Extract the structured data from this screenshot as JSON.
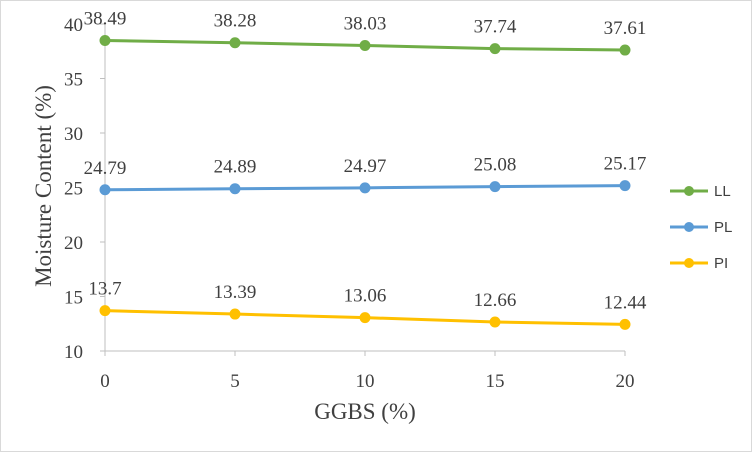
{
  "chart_data": {
    "type": "line",
    "title": "",
    "xlabel": "GGBS (%)",
    "ylabel": "Moisture Content (%)",
    "x": [
      0,
      5,
      10,
      15,
      20
    ],
    "xlim": [
      0,
      20
    ],
    "ylim": [
      10,
      40
    ],
    "yticks": [
      10,
      15,
      20,
      25,
      30,
      35,
      40
    ],
    "grid": false,
    "legend_position": "right",
    "series": [
      {
        "name": "LL",
        "color": "#70ad47",
        "values": [
          38.49,
          38.28,
          38.03,
          37.74,
          37.61
        ],
        "labels": [
          "38.49",
          "38.28",
          "38.03",
          "37.74",
          "37.61"
        ]
      },
      {
        "name": "PL",
        "color": "#5b9bd5",
        "values": [
          24.79,
          24.89,
          24.97,
          25.08,
          25.17
        ],
        "labels": [
          "24.79",
          "24.89",
          "24.97",
          "25.08",
          "25.17"
        ]
      },
      {
        "name": "PI",
        "color": "#ffc000",
        "values": [
          13.7,
          13.39,
          13.06,
          12.66,
          12.44
        ],
        "labels": [
          "13.7",
          "13.39",
          "13.06",
          "12.66",
          "12.44"
        ]
      }
    ]
  }
}
